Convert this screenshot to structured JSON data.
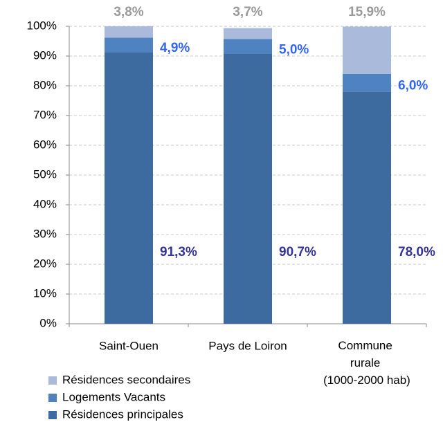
{
  "chart_data": {
    "type": "stacked_bar",
    "categories": [
      "Saint-Ouen",
      "Pays de Loiron",
      "Commune rurale (1000-2000 hab)"
    ],
    "series": [
      {
        "name": "Résidences principales",
        "color": "#3d6b9f",
        "values": [
          91.3,
          90.7,
          78.0
        ],
        "value_labels": [
          "91,3%",
          "90,7%",
          "78,0%"
        ]
      },
      {
        "name": "Logements Vacants",
        "color": "#4f82c0",
        "values": [
          4.9,
          5.0,
          6.0
        ],
        "value_labels": [
          "4,9%",
          "5,0%",
          "6,0%"
        ]
      },
      {
        "name": "Résidences secondaires",
        "color": "#aabada",
        "values": [
          3.8,
          3.7,
          15.9
        ],
        "value_labels": [
          "3,8%",
          "3,7%",
          "15,9%"
        ]
      }
    ],
    "ylim": [
      0,
      100
    ],
    "yticks": [
      {
        "value": 0,
        "label": "0%"
      },
      {
        "value": 10,
        "label": "10%"
      },
      {
        "value": 20,
        "label": "20%"
      },
      {
        "value": 30,
        "label": "30%"
      },
      {
        "value": 40,
        "label": "40%"
      },
      {
        "value": 50,
        "label": "50%"
      },
      {
        "value": 60,
        "label": "60%"
      },
      {
        "value": 70,
        "label": "70%"
      },
      {
        "value": 80,
        "label": "80%"
      },
      {
        "value": 90,
        "label": "90%"
      },
      {
        "value": 100,
        "label": "100%"
      }
    ],
    "grid": true
  }
}
